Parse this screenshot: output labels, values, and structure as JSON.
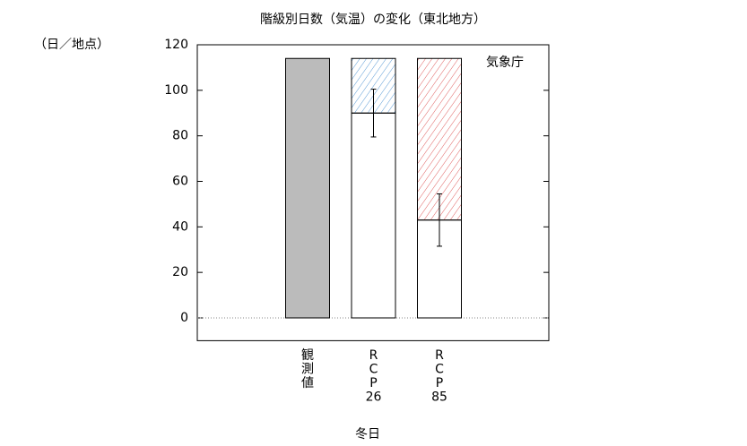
{
  "chart_data": {
    "type": "bar",
    "title": "階級別日数（気温）の変化（東北地方）",
    "y_label": "（日／地点）",
    "annotation": "気象庁",
    "x_label": "冬日",
    "categories": [
      "観測値",
      "RCP26",
      "RCP85"
    ],
    "series": [
      {
        "color": "#bbbbbb",
        "values": [
          114,
          null,
          null
        ]
      },
      {
        "color": "#ffffff",
        "values": [
          null,
          90,
          43
        ],
        "errors": [
          null,
          10.5,
          11.5
        ]
      },
      {
        "colors": [
          null,
          "#5b9bd5",
          "#e06060"
        ],
        "pattern": "hatch",
        "values": [
          null,
          24,
          71
        ]
      }
    ],
    "ylim": [
      -10,
      120
    ],
    "yticks": [
      0,
      20,
      40,
      60,
      80,
      100,
      120
    ]
  }
}
